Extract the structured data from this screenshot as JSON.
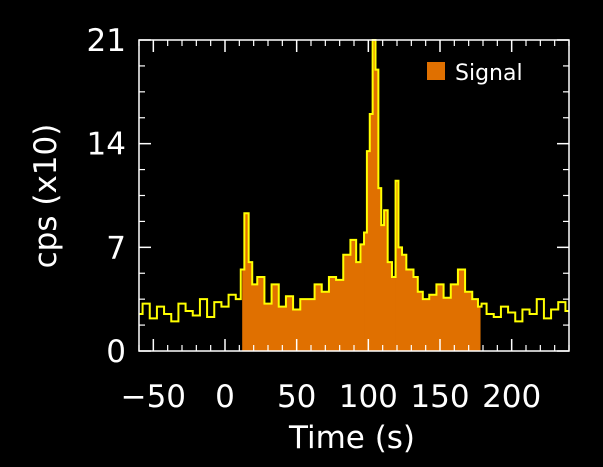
{
  "chart_data": {
    "type": "area",
    "xlabel": "Time (s)",
    "ylabel": "cps (x10)",
    "xlim": [
      -60,
      240
    ],
    "ylim": [
      0,
      21
    ],
    "x_ticks": [
      {
        "value": -50,
        "label": "−50"
      },
      {
        "value": 0,
        "label": "0"
      },
      {
        "value": 50,
        "label": "50"
      },
      {
        "value": 100,
        "label": "100"
      },
      {
        "value": 150,
        "label": "150"
      },
      {
        "value": 200,
        "label": "200"
      }
    ],
    "y_ticks": [
      {
        "value": 0,
        "label": "0"
      },
      {
        "value": 7,
        "label": "7"
      },
      {
        "value": 14,
        "label": "14"
      },
      {
        "value": 21,
        "label": "21"
      }
    ],
    "legend": {
      "position": "top-right",
      "label": "Signal"
    },
    "signal_interval": [
      12,
      178
    ],
    "series": [
      {
        "name": "Signal",
        "color_line": "#ffff00",
        "color_fill": "#e07000",
        "x": [
          -60,
          -55,
          -50,
          -45,
          -40,
          -35,
          -30,
          -25,
          -20,
          -15,
          -10,
          -5,
          0,
          5,
          10,
          12,
          15,
          18,
          20,
          25,
          30,
          35,
          40,
          45,
          50,
          55,
          60,
          65,
          70,
          75,
          80,
          85,
          90,
          93,
          96,
          98,
          100,
          102,
          104,
          106,
          108,
          110,
          112,
          115,
          118,
          120,
          122,
          125,
          128,
          130,
          133,
          136,
          140,
          145,
          150,
          155,
          160,
          165,
          170,
          175,
          178,
          180,
          185,
          190,
          195,
          200,
          205,
          210,
          215,
          220,
          225,
          230,
          235,
          240
        ],
        "y": [
          2.5,
          3.2,
          2.2,
          3.0,
          2.5,
          2.0,
          3.2,
          2.7,
          2.4,
          3.5,
          2.3,
          3.3,
          3.0,
          3.8,
          3.5,
          5.5,
          9.3,
          6.0,
          4.5,
          5.0,
          3.2,
          4.5,
          3.0,
          3.7,
          2.8,
          3.5,
          3.5,
          4.5,
          4.0,
          5.0,
          4.8,
          6.5,
          7.5,
          6.0,
          7.2,
          8.0,
          13.5,
          16.0,
          21.0,
          19.0,
          11.0,
          8.5,
          9.5,
          6.0,
          5.0,
          11.5,
          7.0,
          6.5,
          5.5,
          5.5,
          5.0,
          4.0,
          3.5,
          3.8,
          4.5,
          3.6,
          4.5,
          5.5,
          4.0,
          3.5,
          3.0,
          3.2,
          2.5,
          2.3,
          3.0,
          2.6,
          2.0,
          2.8,
          2.5,
          3.5,
          2.2,
          2.8,
          3.3,
          2.7
        ]
      }
    ]
  }
}
